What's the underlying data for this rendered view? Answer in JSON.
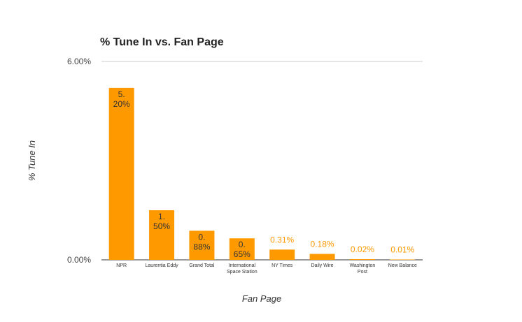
{
  "chart_data": {
    "type": "bar",
    "title": "% Tune In vs. Fan Page",
    "xlabel": "Fan Page",
    "ylabel": "% Tune In",
    "ylim": [
      0,
      6.0
    ],
    "yticks": [
      "0.00%",
      "6.00%"
    ],
    "grid": true,
    "legend": "none",
    "bar_color": "#ff9900",
    "categories": [
      "NPR",
      "Laurentia Eddy",
      "Grand Total",
      "International Space Station",
      "NY Times",
      "Daily Wire",
      "Washington Post",
      "New Balance"
    ],
    "values": [
      5.2,
      1.5,
      0.88,
      0.65,
      0.31,
      0.18,
      0.02,
      0.01
    ],
    "data_labels": [
      "5.20%",
      "1.50%",
      "0.88%",
      "0.65%",
      "0.31%",
      "0.18%",
      "0.02%",
      "0.01%"
    ]
  }
}
